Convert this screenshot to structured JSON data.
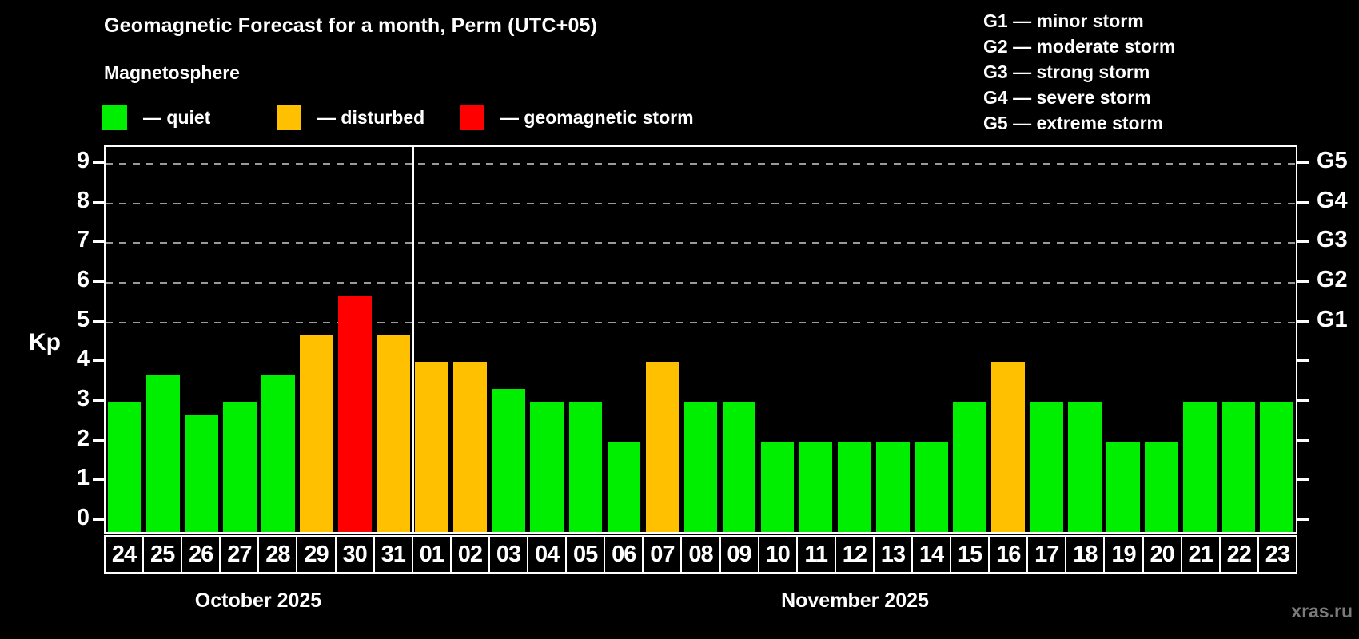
{
  "title": "Geomagnetic Forecast for a month, Perm (UTC+05)",
  "subtitle": "Magnetosphere",
  "legend": {
    "items": [
      {
        "label": "— quiet",
        "key": "quiet"
      },
      {
        "label": "— disturbed",
        "key": "disturbed"
      },
      {
        "label": "— geomagnetic storm",
        "key": "storm"
      }
    ]
  },
  "g_legend": {
    "items": [
      "G1 — minor storm",
      "G2 — moderate storm",
      "G3 — strong storm",
      "G4 — severe storm",
      "G5 — extreme storm"
    ]
  },
  "axis": {
    "y_label": "Kp",
    "kp_ticks": [
      "0",
      "1",
      "2",
      "3",
      "4",
      "5",
      "6",
      "7",
      "8",
      "9"
    ],
    "g_ticks": [
      {
        "label": "G1",
        "kp": 5
      },
      {
        "label": "G2",
        "kp": 6
      },
      {
        "label": "G3",
        "kp": 7
      },
      {
        "label": "G4",
        "kp": 8
      },
      {
        "label": "G5",
        "kp": 9
      }
    ]
  },
  "months": {
    "first": "October 2025",
    "second": "November 2025"
  },
  "watermark": "xras.ru",
  "colors": {
    "quiet": "#00ee00",
    "disturbed": "#ffc000",
    "storm": "#ff0000",
    "axis": "#ffffff",
    "grid": "#9a9a9a"
  },
  "chart_data": {
    "type": "bar",
    "title": "Geomagnetic Forecast for a month, Perm (UTC+05)",
    "ylabel": "Kp",
    "ylim": [
      0,
      9
    ],
    "grid": "dashed horizontal at storm levels only",
    "gridlines_kp": [
      5,
      6,
      7,
      8,
      9
    ],
    "categories": [
      "24",
      "25",
      "26",
      "27",
      "28",
      "29",
      "30",
      "31",
      "01",
      "02",
      "03",
      "04",
      "05",
      "06",
      "07",
      "08",
      "09",
      "10",
      "11",
      "12",
      "13",
      "14",
      "15",
      "16",
      "17",
      "18",
      "19",
      "20",
      "21",
      "22",
      "23"
    ],
    "values": [
      3,
      3.67,
      2.67,
      3,
      3.67,
      4.67,
      5.67,
      4.67,
      4,
      4,
      3.33,
      3,
      3,
      2,
      4,
      3,
      3,
      2,
      2,
      2,
      2,
      2,
      3,
      4,
      3,
      3,
      2,
      2,
      3,
      3,
      3
    ],
    "status": [
      "quiet",
      "quiet",
      "quiet",
      "quiet",
      "quiet",
      "disturbed",
      "storm",
      "disturbed",
      "disturbed",
      "disturbed",
      "quiet",
      "quiet",
      "quiet",
      "quiet",
      "disturbed",
      "quiet",
      "quiet",
      "quiet",
      "quiet",
      "quiet",
      "quiet",
      "quiet",
      "quiet",
      "disturbed",
      "quiet",
      "quiet",
      "quiet",
      "quiet",
      "quiet",
      "quiet",
      "quiet"
    ],
    "month_split_index": 8,
    "months": [
      "October 2025",
      "November 2025"
    ],
    "legend_position": "top-left and top-right"
  }
}
